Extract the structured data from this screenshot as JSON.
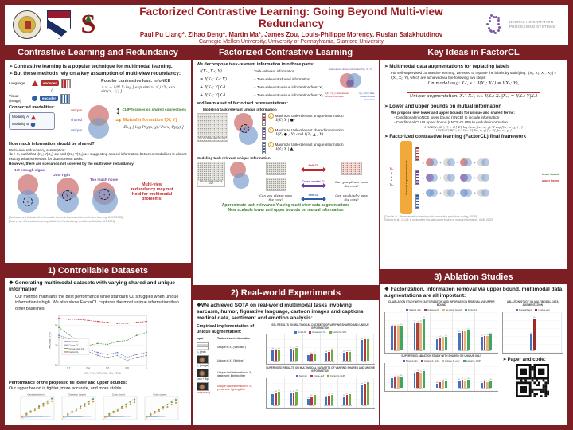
{
  "header": {
    "title": "Factorized Contrastive Learning: Going Beyond Multi-view Redundancy",
    "authors": "Paul Pu Liang*, Zihao Deng*, Martin Ma*, James Zou, Louis-Philippe Morency, Ruslan Salakhutdinov",
    "affiliations": "Carnegie Mellon University, University of Pennsylvania, Stanford University",
    "neurips1": "NEURAL INFORMATION",
    "neurips2": "PROCESSING SYSTEMS",
    "stanford_letter": "S"
  },
  "s1": {
    "header": "Contrastive Learning and Redundancy",
    "b1": "Contrastive learning is a popular technique for multimodal learning.",
    "b2": "But these methods rely on a key assumption of multi-view redundancy:",
    "language_label": "Language",
    "visual_label": "Visual (image)",
    "encoder_label": "encoder",
    "f_l": "fL",
    "f_v": "fV",
    "loss_symbol": "ℒ",
    "infonce_title": "Popular contrastive loss: InfoNCE",
    "infonce_formula": "ℒ = − 1/N Σᵢ log [ exp sim(zᵢ, zᵢ′) ⁄ Σⱼ exp sim(zᵢ, zⱼ′) ]",
    "connected": "Connected modalities:",
    "modality_a": "Modality A",
    "modality_b": "Modality B",
    "unique_top": "unique",
    "shared_mid": "shared",
    "unique_bot": "unique",
    "mi_label": "Mutual information I(X; Y)",
    "clip_note": "CLIP focuses on shared connections",
    "mi_formula": "𝔼x,y [ log Pxy(x, y) ⁄ Px(x) Py(y) ]",
    "question": "How much information should be shared?",
    "assumption_title": "Multi-view redundancy assumption:",
    "assumption_body": "∃ε > 0, such that I(X₁; Y|X₂) ≤ ε and I(X₂; Y|X₁) ≤ ε suggesting shared information between modalities is almost exactly what is relevant for downstream tasks.",
    "however": "However, there are scenarios not covered by the multi-view redundancy:",
    "venn_labels": [
      "Not enough signal",
      "Just right",
      "Too much noise"
    ],
    "y_label": "Y",
    "warning": "Multi-view redundancy may not hold for multimodal problems!",
    "cite1": "[Sridharan and Kakade, An information theoretic framework for multi-view learning, COLT 2008]",
    "cite2": "[Tosh et al., Contrastive Learning, Multi-view Redundancy, and Linear Models, ALT 2021]"
  },
  "s2": {
    "header": "Factorized Contrastive Learning",
    "intro": "We decompose task-relevant information into three parts:",
    "eq": [
      {
        "lhs": "I(X₁, X₂; Y)",
        "rhs": "Task-relevant information"
      },
      {
        "lhs": "=  I(X₁; X₂; Y)",
        "rhs": "= Task-relevant shared information"
      },
      {
        "lhs": "+  I(X₁; Y|X₂)",
        "rhs": "+ Task-relevant unique information from X₁"
      },
      {
        "lhs": "+  I(X₂; Y|X₁)",
        "rhs": "+ Task-relevant unique information from X₂"
      }
    ],
    "venn_top": "Task-relevant shared information I(X₁; X₂; Y)",
    "venn_left": "I(X₁; Y|X₂) Task-relevant unique information",
    "venn_right": "I(X₂; Y|X₁) Task-relevant unique information",
    "learn": "and learn a set of factorized representations:",
    "sub1": "Modeling task-relevant unique information",
    "items": [
      {
        "num": "2",
        "text": "Maximize task-relevant unique information",
        "formula": "I(Z; Y | ●)"
      },
      {
        "num": "1",
        "text": "Maximize task-relevant shared information",
        "formula": "I(Z; ● ; Y)   and   I(Z; ▲ ; Y)"
      },
      {
        "num": "3",
        "text": "Maximize task-relevant unique information",
        "formula": "I(Z; Y | ▲)"
      }
    ],
    "sub2": "Modeling task-relevant unique information",
    "img_caption": "Can you please pass the cow?",
    "arrow1": "Self CL",
    "arrow2": "Cross-modal CL",
    "arrow3": "Self CL",
    "cap_mid": "Can you please pass the cow?",
    "cap_right1": "Can you please pass the cow?",
    "cap_right2": "Can you kindly pass the cow?",
    "green1": "Approximate task-relevance Y using multi-view data augmentations",
    "green2": "New scalable lower and upper bounds on mutual information",
    "y_label": "Y"
  },
  "s3": {
    "header": "Key Ideas in FactorCL",
    "b1": "Multimodal data augmentations for replacing labels",
    "p1": "For self-supervised contrastive learning, we need to replace the labels by satisfying: I(X₁, X₂; X₁′, X₂′) = I(X₁, X₂; Y), which are achieved via the following two steps:",
    "eq1": "Unimodal aug: X₁′, s.t. I(X₁; X₁′) = I(X₁; Y),",
    "eq2": "Unique augmentation: X₁′, X₂′, s.t. I(X₂; X₂′|X₁) = I(X₂; Y|X₁)",
    "b2": "Lower and upper bounds on mutual information",
    "p2": "We propose new lower and upper bounds for unique and shared terms:",
    "li1": "- Conditional InfoNCE lower bound (I NCE) to include information",
    "li2": "- Conditional CLUB upper bound (I NCE-CLUB) to exclude information",
    "f1": "I NCE(X₁; X₂ | Y) = 𝔼 [ 𝔼 [ log ( exp f(x₁, x₂, y) ⁄ Σ exp f(x₁, x₂′, y) ) ] ]",
    "f2": "I NCE-CLUB(X₁; X₂ | Y) = 𝔼 [ f(x₁, x₂, y) ] − 𝔼 [ f(x₁, x₂′, y) ]",
    "b3": "Factorized contrastive learning (FactorCL) final framework",
    "x1": "X₁",
    "x2": "X₂",
    "box_label": "Neural representations",
    "fw_ops": [
      "=",
      "+",
      "−",
      "+"
    ],
    "lower": "lower bound",
    "upper": "upper bound",
    "cite1": "[Oord et al., Representation learning with contrastive predictive coding, 2018]",
    "cite2": "[Cheng et al., CLUB: A contrastive log-ratio upper bound of mutual information, ICML 2020]"
  },
  "s4": {
    "header": "1) Controllable Datasets",
    "b1": "Generating multimodal datasets with varying shared and unique information",
    "p1": "Our method maintains the best performance while standard CL struggles when unique information is high. We also show FactorCL captures the most unique information than other baselines.",
    "chart": {
      "type": "line",
      "ylabel": "Accuracy (%)",
      "xlabel": "I(X₁; Y|X₂) / (I(X₁; X₂) + I(X₁; Y|X₂))",
      "x": [
        0.1,
        0.2,
        0.3,
        0.4,
        0.5,
        0.6,
        0.7,
        0.8,
        0.9,
        1.0
      ],
      "xticks": [
        0.2,
        0.4,
        0.6,
        0.8,
        1.0
      ],
      "ylim": [
        50,
        100
      ],
      "yticks": [
        50,
        70,
        90
      ],
      "series": [
        {
          "name": "SimCLR",
          "color": "#8a8a8a",
          "values": [
            78,
            75,
            70,
            64,
            60,
            58,
            60,
            55,
            58,
            60
          ]
        },
        {
          "name": "Cross CL",
          "color": "#6a7fd4",
          "values": [
            80,
            77,
            72,
            66,
            63,
            61,
            63,
            58,
            61,
            63
          ]
        },
        {
          "name": "Cross+self CL",
          "color": "#55a055",
          "values": [
            88,
            81,
            74,
            70,
            72,
            71,
            74,
            75,
            80,
            83
          ]
        },
        {
          "name": "FactorCL",
          "color": "#cc4444",
          "values": [
            97,
            96,
            96,
            95,
            94,
            93,
            92,
            92,
            93,
            94
          ]
        }
      ]
    },
    "p2": "Performance of the proposed MI lower and upper bounds:",
    "p3": "Our upper bound is tighter, more accurate, and more stable.",
    "bounds": {
      "type": "mini",
      "titles": [
        "Gaussian (lower)",
        "Gaussian (upper)",
        "Cubic (lower)",
        "Cubic (upper)"
      ],
      "x": [
        0,
        1,
        2,
        3,
        4,
        5,
        6,
        7
      ],
      "green": [
        1,
        2,
        3,
        4,
        5,
        6,
        7,
        8
      ],
      "orange": [
        0.8,
        1.6,
        2.6,
        3.4,
        4.4,
        5.2,
        6.2,
        7.0
      ],
      "blue": [
        0.6,
        0.7,
        0.7,
        0.8,
        0.8,
        0.9,
        0.9,
        1.0
      ]
    }
  },
  "s5": {
    "header": "2) Real-world Experiments",
    "b1": "We achieved SOTA on real-world multimodal tasks involving sarcasm, humor, figurative language, cartoon images and captions, medical data, sentiment and emotion analysis:",
    "sub": "Empirical implementation of unique augmentation:",
    "table": {
      "col1": "Input",
      "col2": "Task-relevant information",
      "rows": [
        {
          "cap": "x₁ (text)",
          "info": "Unique in X₁ ('sarcasm')"
        },
        {
          "cap": "x₂ (image)",
          "info": "Unique in X₂ ('lighting')"
        },
        {
          "cap": "crop + flip",
          "info": "Unique task information in X₂ destroyed: lighting jitter"
        },
        {
          "cap": "unique aug",
          "info": "Unique task information in X₂ preserved: lighting jitter"
        }
      ]
    },
    "chart_ssl": {
      "type": "bar",
      "title": "SSL results on multimodal datasets of varying shared and unique information",
      "categories": [
        "MIMIC",
        "MOSEI",
        "MOSI",
        "UR-FUNNY",
        "MUSTARD",
        "IRFL"
      ],
      "ylim": [
        40,
        95
      ],
      "series": [
        {
          "name": "SimCLR",
          "color": "#4472c4",
          "values": [
            66,
            67,
            54,
            58,
            59,
            86
          ]
        },
        {
          "name": "Cross+self CL",
          "color": "#b23a3a",
          "values": [
            64,
            66,
            55,
            61,
            60,
            88
          ]
        },
        {
          "name": "FactorCL-SSL",
          "color": "#70ad47",
          "values": [
            65,
            69,
            57,
            63,
            60,
            88
          ]
        }
      ]
    },
    "chart_sup": {
      "type": "bar",
      "title": "Supervised results on multimodal datasets of varying shared and unique information",
      "categories": [
        "MIMIC",
        "MOSEI",
        "MOSI",
        "UR-FUNNY",
        "MUSTARD",
        "IRFL"
      ],
      "ylim": [
        40,
        95
      ],
      "series": [
        {
          "name": "SupCon",
          "color": "#4472c4",
          "values": [
            64,
            67,
            52,
            56,
            58,
            84
          ]
        },
        {
          "name": "Cross+self",
          "color": "#b23a3a",
          "values": [
            66,
            66,
            58,
            60,
            61,
            87
          ]
        },
        {
          "name": "FactorCL-SUP",
          "color": "#70ad47",
          "values": [
            69,
            69,
            61,
            62,
            63,
            89
          ]
        }
      ]
    }
  },
  "s6": {
    "header": "3) Ablation Studies",
    "b1": "Factorization, information removal via upper bound, multimodal data augmentations are all important:",
    "chart_cl": {
      "type": "bar",
      "title": "CL ablation study with factorization and information removal via upper bound",
      "categories": [
        "MIMIC",
        "MOSEI",
        "MOSI",
        "UR-FUNNY",
        "MUSTARD"
      ],
      "ylim": [
        40,
        90
      ],
      "series": [
        {
          "name": "Shared only",
          "color": "#4472c4",
          "values": [
            72,
            78,
            55,
            63,
            58
          ]
        },
        {
          "name": "Unique only",
          "color": "#a94442",
          "values": [
            72,
            77,
            57,
            66,
            59
          ]
        },
        {
          "name": "No upper bound",
          "color": "#e8b07a",
          "values": [
            72,
            78,
            56,
            66,
            59
          ]
        },
        {
          "name": "FactorCL",
          "color": "#3fa75f",
          "values": [
            73,
            83,
            58,
            67,
            61
          ]
        }
      ]
    },
    "chart_aug": {
      "type": "bar",
      "title": "Ablation study on multimodal data augmentation",
      "categories": [
        "IRFL"
      ],
      "ylim": [
        0,
        90
      ],
      "series": [
        {
          "name": "Standard aug",
          "color": "#4472c4",
          "values": [
            38
          ]
        },
        {
          "name": "Unique aug",
          "color": "#9c2b2b",
          "values": [
            78
          ]
        }
      ]
    },
    "chart_sup": {
      "type": "bar",
      "title": "Supervised ablation study with shared or unique only",
      "categories": [
        "MIMIC",
        "MOSEI",
        "MOSI",
        "UR-FUNNY",
        "MUSTARD"
      ],
      "ylim": [
        40,
        90
      ],
      "series": [
        {
          "name": "Shared only",
          "color": "#4472c4",
          "values": [
            60,
            72,
            48,
            55,
            50
          ]
        },
        {
          "name": "Unique X₁ only",
          "color": "#a94442",
          "values": [
            63,
            74,
            52,
            57,
            53
          ]
        },
        {
          "name": "Unique X₂ only",
          "color": "#e8b07a",
          "values": [
            62,
            73,
            53,
            56,
            52
          ]
        },
        {
          "name": "FactorCL-SUP",
          "color": "#3fa75f",
          "values": [
            65,
            76,
            55,
            58,
            56
          ]
        }
      ]
    },
    "paper_code": "Paper and code:"
  }
}
